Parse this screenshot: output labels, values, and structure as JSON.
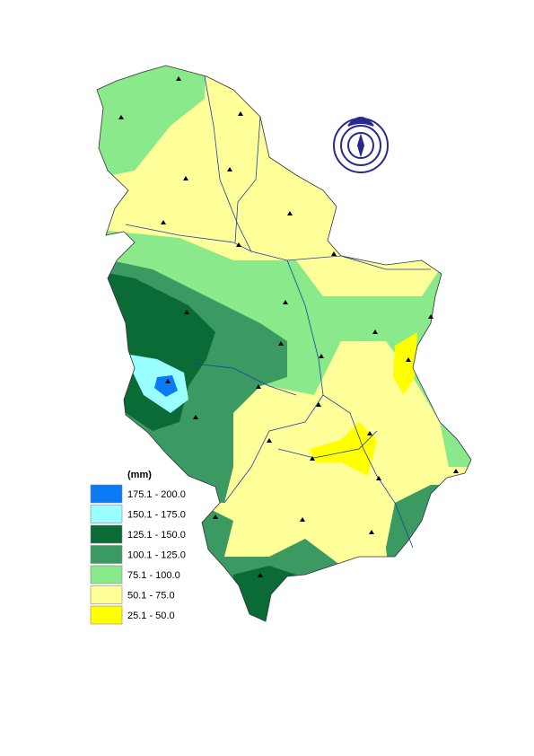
{
  "legend": {
    "title": "(mm)",
    "items": [
      {
        "label": "175.1 - 200.0",
        "color": "#0a7af5"
      },
      {
        "label": "150.1 - 175.0",
        "color": "#99ffff"
      },
      {
        "label": "125.1 - 150.0",
        "color": "#0b6b37"
      },
      {
        "label": "100.1 - 125.0",
        "color": "#3a9a62"
      },
      {
        "label": "75.1 - 100.0",
        "color": "#8ae98a"
      },
      {
        "label": "50.1 - 75.0",
        "color": "#ffff99"
      },
      {
        "label": "25.1 - 50.0",
        "color": "#ffff00"
      }
    ]
  }
}
